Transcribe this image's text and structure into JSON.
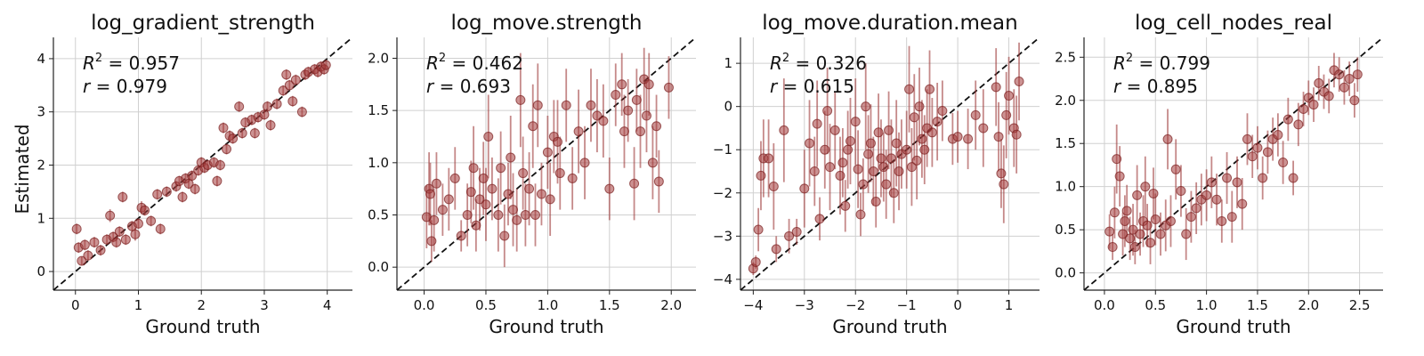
{
  "figure": {
    "ylabel": "Estimated",
    "xlabel": "Ground truth",
    "colors": {
      "point": "#a33a3a",
      "errorbar": "#9e3b3b",
      "diagonal": "#111111",
      "grid": "#d0d0d0"
    }
  },
  "chart_data": [
    {
      "type": "scatter",
      "title": "log_gradient_strength",
      "xlabel": "Ground truth",
      "ylabel": "Estimated",
      "stats": {
        "r2_label": "R",
        "r2_exp": "2",
        "r2_value": " = 0.957",
        "r_label": "r",
        "r_value": " = 0.979"
      },
      "xlim": [
        -0.35,
        4.4
      ],
      "ylim": [
        -0.35,
        4.4
      ],
      "xticks": [
        0,
        1,
        2,
        3,
        4
      ],
      "yticks": [
        0,
        1,
        2,
        3,
        4
      ],
      "grid": true,
      "points": [
        [
          0.02,
          0.8,
          0.1
        ],
        [
          0.05,
          0.45,
          0.1
        ],
        [
          0.1,
          0.2,
          0.08
        ],
        [
          0.15,
          0.5,
          0.1
        ],
        [
          0.2,
          0.3,
          0.1
        ],
        [
          0.3,
          0.55,
          0.1
        ],
        [
          0.4,
          0.4,
          0.1
        ],
        [
          0.5,
          0.6,
          0.1
        ],
        [
          0.55,
          1.05,
          0.12
        ],
        [
          0.6,
          0.65,
          0.1
        ],
        [
          0.65,
          0.55,
          0.1
        ],
        [
          0.7,
          0.75,
          0.1
        ],
        [
          0.75,
          1.4,
          0.1
        ],
        [
          0.8,
          0.6,
          0.1
        ],
        [
          0.9,
          0.85,
          0.1
        ],
        [
          0.95,
          0.7,
          0.12
        ],
        [
          1.0,
          0.9,
          0.1
        ],
        [
          1.05,
          1.2,
          0.12
        ],
        [
          1.1,
          1.15,
          0.1
        ],
        [
          1.2,
          0.95,
          0.1
        ],
        [
          1.3,
          1.45,
          0.1
        ],
        [
          1.35,
          0.8,
          0.1
        ],
        [
          1.45,
          1.5,
          0.1
        ],
        [
          1.6,
          1.6,
          0.1
        ],
        [
          1.65,
          1.7,
          0.1
        ],
        [
          1.7,
          1.4,
          0.1
        ],
        [
          1.75,
          1.75,
          0.1
        ],
        [
          1.8,
          1.65,
          0.1
        ],
        [
          1.85,
          1.8,
          0.1
        ],
        [
          1.9,
          1.55,
          0.1
        ],
        [
          1.95,
          1.9,
          0.1
        ],
        [
          2.0,
          2.05,
          0.1
        ],
        [
          2.05,
          1.95,
          0.1
        ],
        [
          2.1,
          2.0,
          0.1
        ],
        [
          2.2,
          2.05,
          0.1
        ],
        [
          2.25,
          1.7,
          0.1
        ],
        [
          2.3,
          2.0,
          0.1
        ],
        [
          2.35,
          2.7,
          0.1
        ],
        [
          2.4,
          2.3,
          0.1
        ],
        [
          2.45,
          2.55,
          0.1
        ],
        [
          2.5,
          2.5,
          0.1
        ],
        [
          2.6,
          3.1,
          0.1
        ],
        [
          2.65,
          2.6,
          0.1
        ],
        [
          2.7,
          2.8,
          0.1
        ],
        [
          2.8,
          2.85,
          0.1
        ],
        [
          2.85,
          2.6,
          0.1
        ],
        [
          2.9,
          2.9,
          0.1
        ],
        [
          3.0,
          2.95,
          0.1
        ],
        [
          3.05,
          3.1,
          0.1
        ],
        [
          3.1,
          2.75,
          0.1
        ],
        [
          3.2,
          3.15,
          0.1
        ],
        [
          3.3,
          3.4,
          0.1
        ],
        [
          3.35,
          3.7,
          0.1
        ],
        [
          3.4,
          3.5,
          0.1
        ],
        [
          3.45,
          3.2,
          0.1
        ],
        [
          3.5,
          3.6,
          0.1
        ],
        [
          3.6,
          3.0,
          0.1
        ],
        [
          3.65,
          3.7,
          0.1
        ],
        [
          3.7,
          3.75,
          0.1
        ],
        [
          3.8,
          3.8,
          0.1
        ],
        [
          3.85,
          3.75,
          0.1
        ],
        [
          3.9,
          3.85,
          0.1
        ],
        [
          3.95,
          3.8,
          0.1
        ],
        [
          3.98,
          3.88,
          0.1
        ]
      ]
    },
    {
      "type": "scatter",
      "title": "log_move.strength",
      "xlabel": "Ground truth",
      "ylabel": "",
      "stats": {
        "r2_label": "R",
        "r2_exp": "2",
        "r2_value": " = 0.462",
        "r_label": "r",
        "r_value": " = 0.693"
      },
      "xlim": [
        -0.22,
        2.2
      ],
      "ylim": [
        -0.22,
        2.2
      ],
      "xticks": [
        0.0,
        0.5,
        1.0,
        1.5,
        2.0
      ],
      "yticks": [
        0.0,
        0.5,
        1.0,
        1.5,
        2.0
      ],
      "grid": true,
      "points": [
        [
          0.02,
          0.48,
          0.3
        ],
        [
          0.04,
          0.75,
          0.35
        ],
        [
          0.05,
          0.7,
          0.3
        ],
        [
          0.06,
          0.25,
          0.2
        ],
        [
          0.08,
          0.45,
          0.3
        ],
        [
          0.1,
          0.8,
          0.3
        ],
        [
          0.15,
          0.55,
          0.25
        ],
        [
          0.2,
          0.65,
          0.3
        ],
        [
          0.25,
          0.85,
          0.3
        ],
        [
          0.3,
          0.3,
          0.15
        ],
        [
          0.35,
          0.5,
          0.3
        ],
        [
          0.38,
          0.72,
          0.3
        ],
        [
          0.4,
          0.95,
          0.4
        ],
        [
          0.42,
          0.4,
          0.25
        ],
        [
          0.45,
          0.65,
          0.3
        ],
        [
          0.48,
          0.85,
          0.35
        ],
        [
          0.5,
          0.6,
          0.35
        ],
        [
          0.52,
          1.25,
          0.4
        ],
        [
          0.55,
          0.75,
          0.3
        ],
        [
          0.6,
          0.5,
          0.35
        ],
        [
          0.62,
          0.95,
          0.35
        ],
        [
          0.65,
          0.3,
          0.3
        ],
        [
          0.68,
          0.7,
          0.3
        ],
        [
          0.7,
          1.05,
          0.4
        ],
        [
          0.72,
          0.55,
          0.35
        ],
        [
          0.75,
          0.45,
          0.3
        ],
        [
          0.78,
          1.6,
          0.45
        ],
        [
          0.8,
          0.9,
          0.35
        ],
        [
          0.82,
          0.5,
          0.3
        ],
        [
          0.85,
          0.75,
          0.35
        ],
        [
          0.88,
          1.35,
          0.4
        ],
        [
          0.9,
          0.5,
          0.3
        ],
        [
          0.92,
          1.55,
          0.4
        ],
        [
          0.95,
          0.7,
          0.3
        ],
        [
          1.0,
          1.1,
          0.35
        ],
        [
          1.02,
          0.65,
          0.35
        ],
        [
          1.05,
          1.25,
          0.35
        ],
        [
          1.08,
          1.2,
          0.4
        ],
        [
          1.1,
          0.9,
          0.35
        ],
        [
          1.15,
          1.55,
          0.35
        ],
        [
          1.2,
          0.85,
          0.3
        ],
        [
          1.25,
          1.3,
          0.4
        ],
        [
          1.3,
          1.0,
          0.35
        ],
        [
          1.35,
          1.55,
          0.35
        ],
        [
          1.4,
          1.45,
          0.35
        ],
        [
          1.45,
          1.4,
          0.35
        ],
        [
          1.5,
          0.75,
          0.3
        ],
        [
          1.55,
          1.65,
          0.3
        ],
        [
          1.6,
          1.75,
          0.3
        ],
        [
          1.62,
          1.3,
          0.35
        ],
        [
          1.65,
          1.5,
          0.3
        ],
        [
          1.7,
          0.8,
          0.35
        ],
        [
          1.72,
          1.6,
          0.3
        ],
        [
          1.75,
          1.3,
          0.35
        ],
        [
          1.78,
          1.8,
          0.3
        ],
        [
          1.8,
          1.45,
          0.35
        ],
        [
          1.82,
          1.75,
          0.3
        ],
        [
          1.85,
          1.0,
          0.35
        ],
        [
          1.88,
          1.35,
          0.3
        ],
        [
          1.9,
          0.82,
          0.3
        ],
        [
          1.98,
          1.72,
          0.3
        ]
      ]
    },
    {
      "type": "scatter",
      "title": "log_move.duration.mean",
      "xlabel": "Ground truth",
      "ylabel": "",
      "stats": {
        "r2_label": "R",
        "r2_exp": "2",
        "r2_value": " = 0.326",
        "r_label": "r",
        "r_value": " = 0.615"
      },
      "xlim": [
        -4.25,
        1.6
      ],
      "ylim": [
        -4.25,
        1.6
      ],
      "xticks": [
        -4,
        -3,
        -2,
        -1,
        0,
        1
      ],
      "yticks": [
        -4,
        -3,
        -2,
        -1,
        0,
        1
      ],
      "grid": true,
      "points": [
        [
          -4.0,
          -3.75,
          0.15
        ],
        [
          -3.95,
          -3.6,
          0.15
        ],
        [
          -3.9,
          -2.85,
          0.5
        ],
        [
          -3.85,
          -1.6,
          0.8
        ],
        [
          -3.8,
          -1.2,
          0.9
        ],
        [
          -3.7,
          -1.2,
          0.9
        ],
        [
          -3.6,
          -1.85,
          1.0
        ],
        [
          -3.55,
          -3.3,
          0.3
        ],
        [
          -3.4,
          -0.55,
          1.2
        ],
        [
          -3.3,
          -3.0,
          0.4
        ],
        [
          -3.15,
          -2.9,
          0.3
        ],
        [
          -3.0,
          -1.9,
          0.9
        ],
        [
          -2.9,
          -0.85,
          1.0
        ],
        [
          -2.8,
          -1.5,
          0.8
        ],
        [
          -2.75,
          -0.4,
          1.0
        ],
        [
          -2.7,
          -2.6,
          0.5
        ],
        [
          -2.6,
          -1.0,
          0.9
        ],
        [
          -2.55,
          -0.1,
          1.0
        ],
        [
          -2.5,
          -1.4,
          1.0
        ],
        [
          -2.4,
          -0.55,
          0.9
        ],
        [
          -2.3,
          -1.6,
          0.9
        ],
        [
          -2.25,
          -1.3,
          0.8
        ],
        [
          -2.2,
          -2.3,
          0.6
        ],
        [
          -2.15,
          -1.0,
          0.9
        ],
        [
          -2.1,
          -0.8,
          1.0
        ],
        [
          -2.0,
          -0.35,
          1.0
        ],
        [
          -1.95,
          -1.45,
          0.9
        ],
        [
          -1.9,
          -2.5,
          0.5
        ],
        [
          -1.85,
          -1.8,
          0.6
        ],
        [
          -1.8,
          0.0,
          1.0
        ],
        [
          -1.75,
          -1.1,
          0.9
        ],
        [
          -1.7,
          -0.85,
          0.9
        ],
        [
          -1.65,
          -1.5,
          0.8
        ],
        [
          -1.6,
          -2.2,
          0.6
        ],
        [
          -1.55,
          -0.6,
          0.9
        ],
        [
          -1.5,
          -1.2,
          0.9
        ],
        [
          -1.45,
          -1.4,
          0.8
        ],
        [
          -1.4,
          -1.8,
          0.8
        ],
        [
          -1.35,
          -0.55,
          0.9
        ],
        [
          -1.3,
          -1.2,
          0.9
        ],
        [
          -1.25,
          -2.0,
          0.7
        ],
        [
          -1.2,
          -0.85,
          1.0
        ],
        [
          -1.15,
          -1.5,
          0.9
        ],
        [
          -1.1,
          -1.1,
          0.8
        ],
        [
          -1.0,
          -1.0,
          0.9
        ],
        [
          -0.95,
          0.4,
          1.0
        ],
        [
          -0.9,
          -1.4,
          0.9
        ],
        [
          -0.85,
          -0.25,
          1.0
        ],
        [
          -0.8,
          -1.25,
          0.9
        ],
        [
          -0.75,
          0.0,
          0.9
        ],
        [
          -0.7,
          -0.75,
          0.9
        ],
        [
          -0.65,
          -1.0,
          0.8
        ],
        [
          -0.6,
          -0.5,
          0.9
        ],
        [
          -0.55,
          0.4,
          0.9
        ],
        [
          -0.5,
          -0.6,
          0.8
        ],
        [
          -0.4,
          -0.35,
          0.9
        ],
        [
          -0.3,
          -0.1,
          0.7
        ],
        [
          -0.1,
          -0.75,
          0.6
        ],
        [
          0.0,
          -0.7,
          0.6
        ],
        [
          0.2,
          -0.75,
          0.7
        ],
        [
          0.35,
          -0.2,
          0.8
        ],
        [
          0.5,
          -0.5,
          0.9
        ],
        [
          0.75,
          0.45,
          0.9
        ],
        [
          0.8,
          -0.7,
          0.8
        ],
        [
          0.85,
          -1.55,
          0.8
        ],
        [
          0.9,
          -1.8,
          0.9
        ],
        [
          0.95,
          -0.2,
          1.0
        ],
        [
          1.0,
          0.25,
          0.9
        ],
        [
          1.1,
          -0.5,
          0.9
        ],
        [
          1.15,
          -0.65,
          0.9
        ],
        [
          1.2,
          0.58,
          0.9
        ]
      ]
    },
    {
      "type": "scatter",
      "title": "log_cell_nodes_real",
      "xlabel": "Ground truth",
      "ylabel": "",
      "stats": {
        "r2_label": "R",
        "r2_exp": "2",
        "r2_value": " = 0.799",
        "r_label": "r",
        "r_value": " = 0.895"
      },
      "xlim": [
        -0.2,
        2.73
      ],
      "ylim": [
        -0.2,
        2.73
      ],
      "xticks": [
        0.0,
        0.5,
        1.0,
        1.5,
        2.0,
        2.5
      ],
      "yticks": [
        0.0,
        0.5,
        1.0,
        1.5,
        2.0,
        2.5
      ],
      "grid": true,
      "points": [
        [
          0.05,
          0.48,
          0.2
        ],
        [
          0.08,
          0.3,
          0.15
        ],
        [
          0.1,
          0.7,
          0.3
        ],
        [
          0.12,
          1.32,
          0.4
        ],
        [
          0.15,
          1.12,
          0.35
        ],
        [
          0.18,
          0.45,
          0.25
        ],
        [
          0.2,
          0.6,
          0.3
        ],
        [
          0.22,
          0.72,
          0.3
        ],
        [
          0.25,
          0.4,
          0.25
        ],
        [
          0.28,
          0.5,
          0.3
        ],
        [
          0.3,
          0.3,
          0.2
        ],
        [
          0.32,
          0.9,
          0.35
        ],
        [
          0.35,
          0.45,
          0.25
        ],
        [
          0.38,
          0.6,
          0.3
        ],
        [
          0.4,
          1.0,
          0.35
        ],
        [
          0.42,
          0.55,
          0.25
        ],
        [
          0.45,
          0.35,
          0.25
        ],
        [
          0.48,
          0.92,
          0.3
        ],
        [
          0.5,
          0.62,
          0.3
        ],
        [
          0.55,
          0.45,
          0.25
        ],
        [
          0.6,
          0.55,
          0.3
        ],
        [
          0.62,
          1.55,
          0.35
        ],
        [
          0.65,
          0.6,
          0.3
        ],
        [
          0.7,
          1.2,
          0.35
        ],
        [
          0.75,
          0.95,
          0.3
        ],
        [
          0.8,
          0.45,
          0.3
        ],
        [
          0.85,
          0.65,
          0.3
        ],
        [
          0.9,
          0.75,
          0.3
        ],
        [
          0.95,
          0.85,
          0.3
        ],
        [
          1.0,
          0.9,
          0.3
        ],
        [
          1.05,
          1.05,
          0.3
        ],
        [
          1.1,
          0.85,
          0.3
        ],
        [
          1.15,
          0.6,
          0.25
        ],
        [
          1.2,
          1.1,
          0.3
        ],
        [
          1.25,
          0.65,
          0.3
        ],
        [
          1.3,
          1.05,
          0.3
        ],
        [
          1.35,
          0.8,
          0.3
        ],
        [
          1.4,
          1.55,
          0.3
        ],
        [
          1.45,
          1.35,
          0.25
        ],
        [
          1.5,
          1.45,
          0.25
        ],
        [
          1.55,
          1.1,
          0.25
        ],
        [
          1.6,
          1.4,
          0.25
        ],
        [
          1.65,
          1.55,
          0.25
        ],
        [
          1.7,
          1.6,
          0.25
        ],
        [
          1.75,
          1.28,
          0.25
        ],
        [
          1.8,
          1.78,
          0.25
        ],
        [
          1.85,
          1.1,
          0.2
        ],
        [
          1.9,
          1.72,
          0.25
        ],
        [
          1.95,
          1.9,
          0.2
        ],
        [
          2.0,
          2.03,
          0.2
        ],
        [
          2.05,
          1.95,
          0.2
        ],
        [
          2.1,
          2.2,
          0.2
        ],
        [
          2.15,
          2.1,
          0.2
        ],
        [
          2.2,
          2.05,
          0.2
        ],
        [
          2.25,
          2.35,
          0.2
        ],
        [
          2.3,
          2.3,
          0.2
        ],
        [
          2.35,
          2.15,
          0.2
        ],
        [
          2.4,
          2.25,
          0.2
        ],
        [
          2.45,
          2.0,
          0.2
        ],
        [
          2.48,
          2.3,
          0.2
        ]
      ]
    }
  ]
}
